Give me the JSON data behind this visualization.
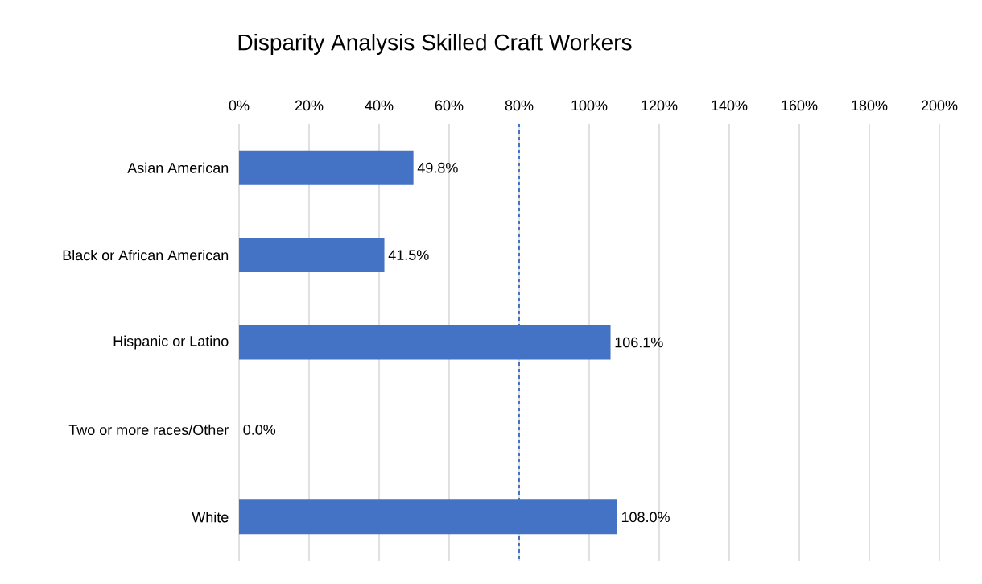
{
  "chart_data": {
    "type": "bar",
    "orientation": "horizontal",
    "title": "Disparity Analysis Skilled Craft Workers",
    "categories": [
      "Asian American",
      "Black or African American",
      "Hispanic or Latino",
      "Two or more races/Other",
      "White"
    ],
    "values": [
      49.8,
      41.5,
      106.1,
      0.0,
      108.0
    ],
    "value_labels": [
      "49.8%",
      "41.5%",
      "106.1%",
      "0.0%",
      "108.0%"
    ],
    "color": "#4472c4",
    "xlim": [
      0,
      200
    ],
    "xticks": [
      {
        "value": 0,
        "label": "0%"
      },
      {
        "value": 20,
        "label": "20%"
      },
      {
        "value": 40,
        "label": "40%"
      },
      {
        "value": 60,
        "label": "60%"
      },
      {
        "value": 80,
        "label": "80%"
      },
      {
        "value": 100,
        "label": "100%"
      },
      {
        "value": 120,
        "label": "120%"
      },
      {
        "value": 140,
        "label": "140%"
      },
      {
        "value": 160,
        "label": "160%"
      },
      {
        "value": 180,
        "label": "180%"
      },
      {
        "value": 200,
        "label": "200%"
      }
    ],
    "grid": "x",
    "ref_lines": [
      {
        "axis": "x",
        "value": 80,
        "color": "#4472c4",
        "line_style": "dashed"
      }
    ]
  }
}
